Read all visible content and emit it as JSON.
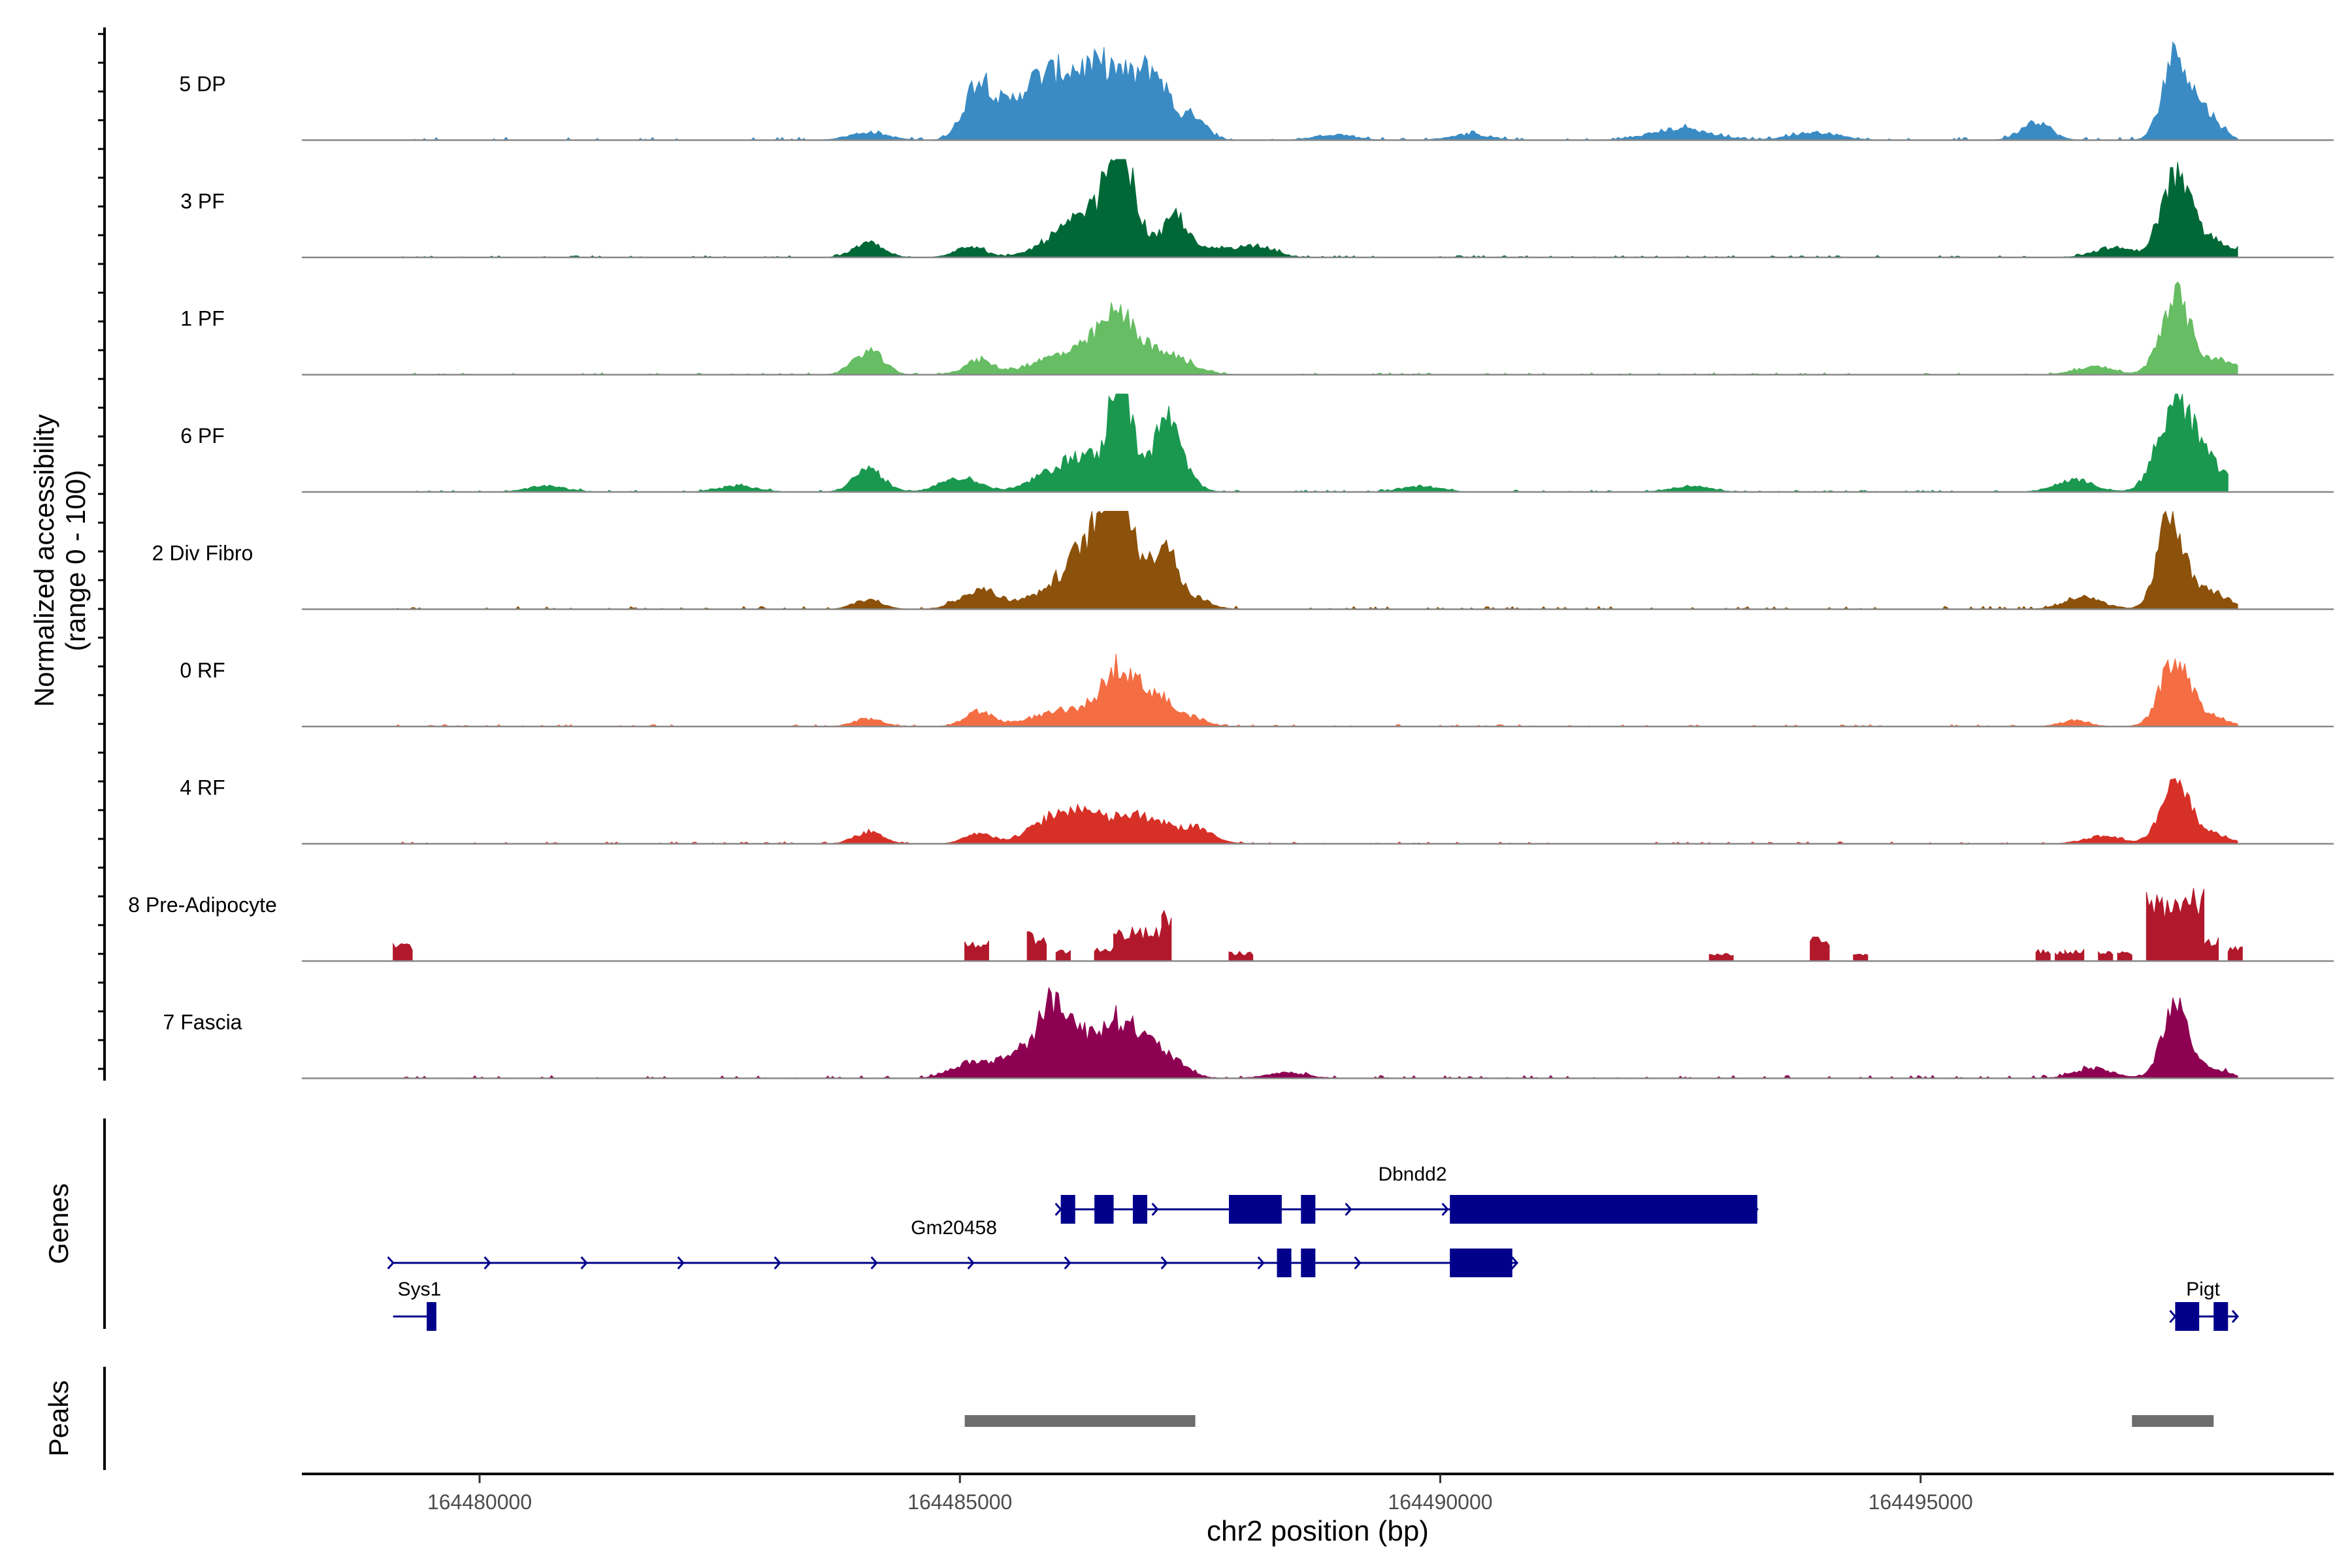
{
  "chart_data": {
    "type": "area",
    "title": "",
    "xlabel": "chr2 position (bp)",
    "ylabel_line1": "Normalized accessibility",
    "ylabel_line2": "(range 0 - 100)",
    "genes_label": "Genes",
    "peaks_label": "Peaks",
    "xlim": [
      164478150,
      164499300
    ],
    "ylim": [
      0,
      100
    ],
    "x_ticks": [
      {
        "value": 164480000,
        "label": "164480000"
      },
      {
        "value": 164485000,
        "label": "164485000"
      },
      {
        "value": 164490000,
        "label": "164490000"
      },
      {
        "value": 164495000,
        "label": "164495000"
      }
    ],
    "tracks": [
      {
        "name": "5 DP",
        "color": "#3a8bc4",
        "sparse": false,
        "peaks": [
          [
            164485200,
            60,
            150
          ],
          [
            164485700,
            32,
            250
          ],
          [
            164486000,
            35,
            300
          ],
          [
            164486350,
            40,
            300
          ],
          [
            164486700,
            45,
            260
          ],
          [
            164487050,
            50,
            150
          ],
          [
            164487450,
            25,
            120
          ],
          [
            164496200,
            20,
            150
          ],
          [
            164497650,
            90,
            130
          ],
          [
            164497950,
            30,
            150
          ],
          [
            164484050,
            8,
            200
          ],
          [
            164492500,
            12,
            300
          ],
          [
            164488900,
            6,
            200
          ],
          [
            164490300,
            6,
            200
          ],
          [
            164493900,
            8,
            250
          ]
        ],
        "noise": 3,
        "start": 164479100,
        "end": 164498300
      },
      {
        "name": "3 PF",
        "color": "#006837",
        "sparse": false,
        "peaks": [
          [
            164484050,
            15,
            150
          ],
          [
            164485100,
            12,
            150
          ],
          [
            164486100,
            25,
            250
          ],
          [
            164486450,
            35,
            200
          ],
          [
            164486650,
            78,
            100
          ],
          [
            164486750,
            45,
            180
          ],
          [
            164487250,
            40,
            120
          ],
          [
            164487750,
            10,
            300
          ],
          [
            164488150,
            8,
            150
          ],
          [
            164497000,
            10,
            200
          ],
          [
            164497650,
            78,
            150
          ],
          [
            164498000,
            18,
            250
          ]
        ],
        "noise": 2,
        "start": 164479100,
        "end": 164498300
      },
      {
        "name": "1 PF",
        "color": "#66bd63",
        "sparse": false,
        "peaks": [
          [
            164484050,
            25,
            150
          ],
          [
            164485200,
            15,
            150
          ],
          [
            164485900,
            12,
            250
          ],
          [
            164486300,
            18,
            250
          ],
          [
            164486650,
            55,
            200
          ],
          [
            164487150,
            20,
            250
          ],
          [
            164496800,
            8,
            200
          ],
          [
            164497650,
            80,
            150
          ],
          [
            164498100,
            15,
            200
          ]
        ],
        "noise": 2,
        "start": 164479100,
        "end": 164498300
      },
      {
        "name": "6 PF",
        "color": "#1a9850",
        "sparse": false,
        "peaks": [
          [
            164484050,
            25,
            150
          ],
          [
            164485000,
            15,
            200
          ],
          [
            164486000,
            20,
            250
          ],
          [
            164486350,
            30,
            200
          ],
          [
            164486650,
            100,
            90
          ],
          [
            164486800,
            40,
            150
          ],
          [
            164487150,
            65,
            110
          ],
          [
            164487300,
            20,
            150
          ],
          [
            164496600,
            12,
            200
          ],
          [
            164497650,
            90,
            180
          ],
          [
            164498000,
            25,
            200
          ],
          [
            164480700,
            6,
            200
          ],
          [
            164482700,
            6,
            200
          ],
          [
            164489800,
            6,
            200
          ],
          [
            164492600,
            6,
            200
          ]
        ],
        "noise": 2,
        "start": 164479100,
        "end": 164498200
      },
      {
        "name": "2 Div Fibro",
        "color": "#8c510a",
        "sparse": false,
        "peaks": [
          [
            164484050,
            10,
            150
          ],
          [
            164485200,
            20,
            200
          ],
          [
            164485900,
            15,
            250
          ],
          [
            164486300,
            55,
            200
          ],
          [
            164486600,
            95,
            150
          ],
          [
            164486800,
            45,
            180
          ],
          [
            164487150,
            65,
            110
          ],
          [
            164487450,
            12,
            150
          ],
          [
            164496700,
            12,
            200
          ],
          [
            164497600,
            100,
            130
          ],
          [
            164498000,
            18,
            200
          ]
        ],
        "noise": 3,
        "start": 164479100,
        "end": 164498300
      },
      {
        "name": "0 RF",
        "color": "#f46d43",
        "sparse": false,
        "peaks": [
          [
            164484050,
            8,
            150
          ],
          [
            164485200,
            15,
            150
          ],
          [
            164485900,
            10,
            250
          ],
          [
            164486350,
            15,
            250
          ],
          [
            164486650,
            55,
            150
          ],
          [
            164486900,
            22,
            120
          ],
          [
            164487100,
            25,
            120
          ],
          [
            164487400,
            10,
            150
          ],
          [
            164496600,
            6,
            150
          ],
          [
            164497650,
            70,
            150
          ],
          [
            164498000,
            10,
            200
          ]
        ],
        "noise": 2,
        "start": 164479100,
        "end": 164498300
      },
      {
        "name": "4 RF",
        "color": "#d73027",
        "sparse": false,
        "peaks": [
          [
            164484050,
            12,
            150
          ],
          [
            164485200,
            10,
            150
          ],
          [
            164486000,
            28,
            250
          ],
          [
            164486300,
            15,
            150
          ],
          [
            164486700,
            22,
            250
          ],
          [
            164487100,
            15,
            300
          ],
          [
            164487500,
            10,
            150
          ],
          [
            164496900,
            8,
            200
          ],
          [
            164497650,
            58,
            150
          ],
          [
            164498000,
            10,
            200
          ]
        ],
        "noise": 2,
        "start": 164479100,
        "end": 164498300
      },
      {
        "name": "8 Pre-Adipocyte",
        "color": "#b2182b",
        "sparse": true,
        "blocks": [
          [
            164479100,
            164479300,
            18
          ],
          [
            164485050,
            164485300,
            22
          ],
          [
            164485700,
            164485900,
            30
          ],
          [
            164486000,
            164486150,
            12
          ],
          [
            164486400,
            164486600,
            15
          ],
          [
            164486600,
            164487100,
            35
          ],
          [
            164487100,
            164487200,
            58
          ],
          [
            164487800,
            164488050,
            10
          ],
          [
            164492800,
            164493050,
            8
          ],
          [
            164493850,
            164494050,
            25
          ],
          [
            164494300,
            164494450,
            10
          ],
          [
            164496200,
            164496350,
            12
          ],
          [
            164496400,
            164496500,
            10
          ],
          [
            164496500,
            164496700,
            12
          ],
          [
            164496850,
            164497000,
            10
          ],
          [
            164497050,
            164497200,
            10
          ],
          [
            164497350,
            164497950,
            75
          ],
          [
            164497950,
            164498100,
            25
          ],
          [
            164498200,
            164498350,
            15
          ]
        ],
        "start": 164479100,
        "end": 164498300
      },
      {
        "name": "7 Fascia",
        "color": "#8e0152",
        "sparse": false,
        "peaks": [
          [
            164485100,
            15,
            200
          ],
          [
            164485700,
            30,
            250
          ],
          [
            164486000,
            55,
            150
          ],
          [
            164486350,
            35,
            250
          ],
          [
            164486700,
            45,
            200
          ],
          [
            164487100,
            25,
            200
          ],
          [
            164488400,
            6,
            200
          ],
          [
            164496800,
            10,
            200
          ],
          [
            164497650,
            70,
            140
          ],
          [
            164498000,
            10,
            200
          ]
        ],
        "noise": 3,
        "start": 164479100,
        "end": 164498300
      }
    ],
    "genes": {
      "color": "#00008b",
      "items": [
        {
          "name": "Dbndd2",
          "row": 1,
          "start": 164486050,
          "end": 164493300,
          "strand": "+",
          "exons": [
            [
              164486050,
              164486200
            ],
            [
              164486400,
              164486600
            ],
            [
              164486800,
              164486950
            ],
            [
              164487800,
              164488350
            ],
            [
              164488550,
              164488700
            ],
            [
              164490100,
              164493300
            ]
          ]
        },
        {
          "name": "Gm20458",
          "row": 2,
          "start": 164479100,
          "end": 164490800,
          "strand": "+",
          "exons": [
            [
              164488300,
              164488450
            ],
            [
              164488550,
              164488700
            ],
            [
              164490100,
              164490750
            ]
          ]
        },
        {
          "name": "Sys1",
          "row": 3,
          "start": 164479100,
          "end": 164479550,
          "strand": "-",
          "exons": [
            [
              164479450,
              164479550
            ]
          ]
        },
        {
          "name": "Pigt",
          "row": 3,
          "start": 164497650,
          "end": 164498300,
          "strand": "+",
          "exons": [
            [
              164497650,
              164497900
            ],
            [
              164498050,
              164498200
            ]
          ]
        }
      ]
    },
    "peaks": {
      "color": "#6e6e6e",
      "regions": [
        [
          164485050,
          164487450
        ],
        [
          164497200,
          164498050
        ]
      ]
    }
  }
}
